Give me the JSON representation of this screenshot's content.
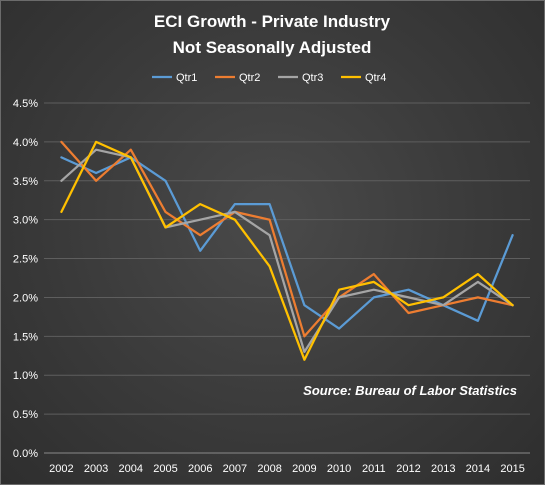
{
  "chart_data": {
    "type": "line",
    "title": "ECI Growth - Private Industry",
    "subtitle": "Not Seasonally Adjusted",
    "xlabel": "",
    "ylabel": "",
    "x": [
      "2002",
      "2003",
      "2004",
      "2005",
      "2006",
      "2007",
      "2008",
      "2009",
      "2010",
      "2011",
      "2012",
      "2013",
      "2014",
      "2015"
    ],
    "y_ticks": [
      "0.0%",
      "0.5%",
      "1.0%",
      "1.5%",
      "2.0%",
      "2.5%",
      "3.0%",
      "3.5%",
      "4.0%",
      "4.5%"
    ],
    "ylim": [
      0,
      4.5
    ],
    "y_unit": "%",
    "grid": true,
    "legend_position": "top",
    "annotation": "Source: Bureau of Labor Statistics",
    "series": [
      {
        "name": "Qtr1",
        "color": "#5b9bd5",
        "values": [
          3.8,
          3.6,
          3.8,
          3.5,
          2.6,
          3.2,
          3.2,
          1.9,
          1.6,
          2.0,
          2.1,
          1.9,
          1.7,
          2.8
        ]
      },
      {
        "name": "Qtr2",
        "color": "#ed7d31",
        "values": [
          4.0,
          3.5,
          3.9,
          3.1,
          2.8,
          3.1,
          3.0,
          1.5,
          2.0,
          2.3,
          1.8,
          1.9,
          2.0,
          1.9
        ]
      },
      {
        "name": "Qtr3",
        "color": "#a5a5a5",
        "values": [
          3.5,
          3.9,
          3.8,
          2.9,
          3.0,
          3.1,
          2.8,
          1.3,
          2.0,
          2.1,
          2.0,
          1.9,
          2.2,
          1.9
        ]
      },
      {
        "name": "Qtr4",
        "color": "#ffc000",
        "values": [
          3.1,
          4.0,
          3.8,
          2.9,
          3.2,
          3.0,
          2.4,
          1.2,
          2.1,
          2.2,
          1.9,
          2.0,
          2.3,
          1.9
        ]
      }
    ]
  }
}
